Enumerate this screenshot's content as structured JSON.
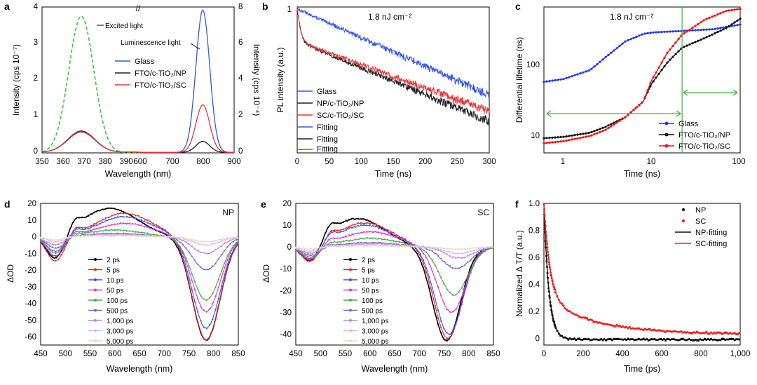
{
  "chart_data": [
    {
      "panel": "a",
      "type": "line",
      "xlabel": "Wavelength (nm)",
      "ylabel": "Intensity (cps 10⁻⁷)",
      "ylabel_right": "Intensity (cps 10⁻⁴)",
      "xlim": [
        350,
        900
      ],
      "ylim": [
        0,
        4
      ],
      "ylim_right": [
        0,
        8
      ],
      "x_ticks": [
        "350",
        "360",
        "370",
        "380",
        "390",
        "600",
        "700",
        "800",
        "900"
      ],
      "y_ticks": [
        "0",
        "1",
        "2",
        "3",
        "4"
      ],
      "y_ticks_right": [
        "0",
        "2",
        "4",
        "6",
        "8"
      ],
      "legend": [
        "Glass",
        "FTO/c-TiO₂/NP",
        "FTO/c-TiO₂/SC"
      ],
      "annotations": [
        "Excited light",
        "Luminescence light",
        "//"
      ],
      "series": [
        {
          "name": "Excited light",
          "style": "dashed",
          "color": "#33cc33",
          "peak_x": 366,
          "peak_y": 3.75,
          "fwhm": 12
        },
        {
          "name": "Glass",
          "color": "#3355ee",
          "peak_x": 366,
          "peak_y": 0.55,
          "emission_peak_x": 800,
          "emission_peak_y_right": 7.8
        },
        {
          "name": "FTO/c-TiO₂/NP",
          "color": "#222222",
          "peak_x": 366,
          "peak_y": 0.58,
          "emission_peak_x": 800,
          "emission_peak_y_right": 0.6
        },
        {
          "name": "FTO/c-TiO₂/SC",
          "color": "#ee3333",
          "peak_x": 366,
          "peak_y": 0.56,
          "emission_peak_x": 800,
          "emission_peak_y_right": 2.6
        }
      ]
    },
    {
      "panel": "b",
      "type": "line",
      "title": "1.8 nJ cm⁻²",
      "xlabel": "Time (ns)",
      "ylabel": "PL intensity (a.u.)",
      "xlim": [
        0,
        300
      ],
      "y_scale": "log",
      "ylim": [
        0.02,
        1
      ],
      "x_ticks": [
        "0",
        "50",
        "100",
        "150",
        "200",
        "250",
        "300"
      ],
      "y_ticks": [
        "1"
      ],
      "legend": [
        "Glass",
        "NP/c-TiO₂/NP",
        "SC/c-TiO₂/SC",
        "Fitting",
        "Fitting",
        "Fitting"
      ],
      "series": [
        {
          "name": "Glass",
          "color": "#3355ee",
          "tau_ns": 130,
          "amplitude": 1.0
        },
        {
          "name": "NP/c-TiO₂/NP",
          "color": "#222222",
          "fast_tau_ns": 4,
          "fast_amp": 0.6,
          "slow_tau_ns": 140,
          "slow_amp": 0.4
        },
        {
          "name": "SC/c-TiO₂/SC",
          "color": "#ee3333",
          "fast_tau_ns": 4,
          "fast_amp": 0.6,
          "slow_tau_ns": 160,
          "slow_amp": 0.4
        }
      ]
    },
    {
      "panel": "c",
      "type": "line",
      "title": "1.8 nJ cm⁻²",
      "xlabel": "Time (ns)",
      "ylabel": "Differential lifetime (ns)",
      "x_scale": "log",
      "xlim": [
        0.6,
        100
      ],
      "y_scale": "log",
      "ylim": [
        4,
        500
      ],
      "x_ticks": [
        "1",
        "10",
        "100"
      ],
      "y_ticks": [
        "10",
        "100"
      ],
      "legend": [
        "Glass",
        "FTO/c-TiO₂/NP",
        "FTO/c-TiO₂/SC"
      ],
      "vertical_line_x": 22,
      "series": [
        {
          "name": "Glass",
          "color": "#2233ee",
          "x": [
            0.6,
            1,
            2,
            3,
            5,
            8,
            10,
            20,
            50,
            100
          ],
          "y": [
            42,
            46,
            62,
            95,
            160,
            205,
            215,
            225,
            240,
            280
          ]
        },
        {
          "name": "FTO/c-TiO₂/NP",
          "color": "#111111",
          "x": [
            0.6,
            1,
            2,
            3,
            5,
            8,
            10,
            15,
            22,
            40,
            70,
            100
          ],
          "y": [
            6.5,
            6.8,
            7.8,
            9.5,
            13,
            22,
            40,
            80,
            130,
            180,
            250,
            340
          ]
        },
        {
          "name": "FTO/c-TiO₂/SC",
          "color": "#ee1111",
          "x": [
            0.6,
            1,
            2,
            3,
            5,
            8,
            10,
            15,
            22,
            40,
            70,
            100
          ],
          "y": [
            5.5,
            5.9,
            7,
            8.6,
            13,
            22,
            45,
            110,
            200,
            330,
            440,
            470
          ]
        }
      ]
    },
    {
      "panel": "d",
      "type": "line",
      "label": "NP",
      "xlabel": "Wavelength (nm)",
      "ylabel": "ΔOD",
      "xlim": [
        450,
        850
      ],
      "ylim": [
        -65,
        20
      ],
      "x_ticks": [
        "450",
        "500",
        "550",
        "600",
        "650",
        "700",
        "750",
        "800",
        "850"
      ],
      "y_ticks": [
        "20",
        "10",
        "0",
        "-10",
        "-20",
        "-30",
        "-40",
        "-50",
        "-60"
      ],
      "legend": [
        "2 ps",
        "5 ps",
        "10 ps",
        "50 ps",
        "100 ps",
        "500 ps",
        "1,000 ps",
        "3,000 ps",
        "5,000 ps"
      ],
      "series": [
        {
          "name": "2 ps",
          "color": "#000000",
          "posPeak": 17,
          "posCenter": 590,
          "bleach": -62,
          "bleachCenter": 785,
          "lowDip": -15
        },
        {
          "name": "5 ps",
          "color": "#ee2222",
          "posPeak": 14,
          "posCenter": 620,
          "bleach": -62,
          "bleachCenter": 785,
          "lowDip": -15
        },
        {
          "name": "10 ps",
          "color": "#3355ee",
          "posPeak": 12,
          "posCenter": 620,
          "bleach": -55,
          "bleachCenter": 785,
          "lowDip": -12
        },
        {
          "name": "50 ps",
          "color": "#dd33dd",
          "posPeak": 8,
          "posCenter": 620,
          "bleach": -45,
          "bleachCenter": 785,
          "lowDip": -10
        },
        {
          "name": "100 ps",
          "color": "#44aa44",
          "posPeak": 4,
          "posCenter": 600,
          "bleach": -38,
          "bleachCenter": 785,
          "lowDip": -9
        },
        {
          "name": "500 ps",
          "color": "#7766cc",
          "posPeak": 2,
          "posCenter": 600,
          "bleach": -20,
          "bleachCenter": 785,
          "lowDip": -7
        },
        {
          "name": "1,000 ps",
          "color": "#bb88dd",
          "posPeak": 1.5,
          "posCenter": 600,
          "bleach": -10,
          "bleachCenter": 785,
          "lowDip": -5
        },
        {
          "name": "3,000 ps",
          "color": "#ddbbdd",
          "posPeak": 1,
          "posCenter": 600,
          "bleach": -5,
          "bleachCenter": 785,
          "lowDip": -3
        },
        {
          "name": "5,000 ps",
          "color": "#e8d8c8",
          "posPeak": 0.5,
          "posCenter": 600,
          "bleach": -3,
          "bleachCenter": 785,
          "lowDip": -2
        }
      ]
    },
    {
      "panel": "e",
      "type": "line",
      "label": "SC",
      "xlabel": "Wavelength (nm)",
      "ylabel": "ΔOD",
      "xlim": [
        450,
        850
      ],
      "ylim": [
        -45,
        20
      ],
      "x_ticks": [
        "450",
        "500",
        "550",
        "600",
        "650",
        "700",
        "750",
        "800",
        "850"
      ],
      "y_ticks": [
        "20",
        "10",
        "0",
        "-10",
        "-20",
        "-30",
        "-40"
      ],
      "legend": [
        "2 ps",
        "5 ps",
        "10 ps",
        "50 ps",
        "100 ps",
        "500 ps",
        "1,000 ps",
        "3,000 ps",
        "5,000 ps"
      ],
      "series": [
        {
          "name": "2 ps",
          "color": "#000000",
          "posPeak": 13,
          "posCenter": 575,
          "bleach": -43,
          "bleachCenter": 755,
          "lowDip": -9
        },
        {
          "name": "5 ps",
          "color": "#ee2222",
          "posPeak": 11,
          "posCenter": 590,
          "bleach": -42,
          "bleachCenter": 758,
          "lowDip": -8
        },
        {
          "name": "10 ps",
          "color": "#3355ee",
          "posPeak": 10,
          "posCenter": 590,
          "bleach": -40,
          "bleachCenter": 760,
          "lowDip": -7
        },
        {
          "name": "50 ps",
          "color": "#dd33dd",
          "posPeak": 7,
          "posCenter": 600,
          "bleach": -30,
          "bleachCenter": 765,
          "lowDip": -6
        },
        {
          "name": "100 ps",
          "color": "#44aa44",
          "posPeak": 4,
          "posCenter": 600,
          "bleach": -22,
          "bleachCenter": 770,
          "lowDip": -5
        },
        {
          "name": "500 ps",
          "color": "#7766cc",
          "posPeak": 2,
          "posCenter": 600,
          "bleach": -10,
          "bleachCenter": 775,
          "lowDip": -4
        },
        {
          "name": "1,000 ps",
          "color": "#bb88dd",
          "posPeak": 1.5,
          "posCenter": 600,
          "bleach": -5,
          "bleachCenter": 780,
          "lowDip": -3
        },
        {
          "name": "3,000 ps",
          "color": "#ddbbdd",
          "posPeak": 1,
          "posCenter": 600,
          "bleach": -3,
          "bleachCenter": 780,
          "lowDip": -2
        },
        {
          "name": "5,000 ps",
          "color": "#e8d8c8",
          "posPeak": 0.5,
          "posCenter": 600,
          "bleach": -1,
          "bleachCenter": 780,
          "lowDip": -1
        }
      ]
    },
    {
      "panel": "f",
      "type": "scatter",
      "xlabel": "Time (ps)",
      "ylabel": "Normalized Δ T/T (a.u.)",
      "xlim": [
        0,
        1000
      ],
      "ylim": [
        -0.05,
        1.0
      ],
      "x_ticks": [
        "0",
        "200",
        "400",
        "600",
        "800",
        "1,000"
      ],
      "y_ticks": [
        "1.0",
        "0.8",
        "0.6",
        "0.4",
        "0.2",
        "0"
      ],
      "legend": [
        "NP",
        "SC",
        "NP-fitting",
        "SC-fitting"
      ],
      "series": [
        {
          "name": "NP",
          "color": "#111111",
          "amplitude": 1.0,
          "tau_ps": 25,
          "offset": -0.01
        },
        {
          "name": "SC",
          "color": "#ee2222",
          "amp_fast": 0.7,
          "tau_fast_ps": 30,
          "amp_slow": 0.27,
          "tau_slow_ps": 250,
          "offset": 0.03
        }
      ]
    }
  ],
  "panel_letters": [
    "a",
    "b",
    "c",
    "d",
    "e",
    "f"
  ]
}
